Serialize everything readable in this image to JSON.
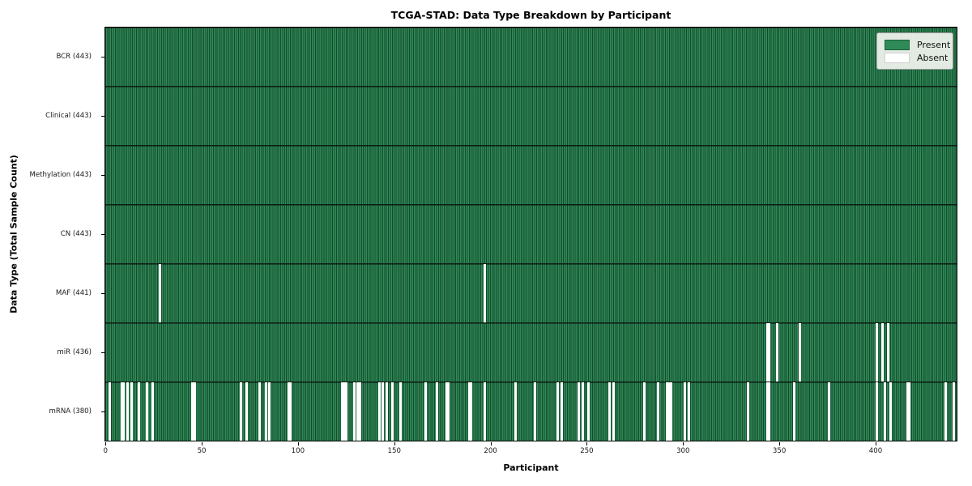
{
  "chart_data": {
    "type": "heatmap",
    "title": "TCGA-STAD: Data Type Breakdown by Participant",
    "xlabel": "Participant",
    "ylabel": "Data Type (Total Sample Count)",
    "n_participants": 443,
    "x_ticks": [
      0,
      50,
      100,
      150,
      200,
      250,
      300,
      350,
      400
    ],
    "legend_position": "upper right",
    "grid": false,
    "colors": {
      "present": "#2e8b57",
      "present_edge": "#17492e",
      "absent": "#ffffff",
      "axes_border": "#000000",
      "legend_background": "#edf1ea"
    },
    "legend": [
      {
        "label": "Present",
        "color": "#2e8b57"
      },
      {
        "label": "Absent",
        "color": "#ffffff"
      }
    ],
    "rows": [
      {
        "name": "BCR",
        "label": "BCR (443)",
        "count": 443,
        "absent": []
      },
      {
        "name": "Clinical",
        "label": "Clinical (443)",
        "count": 443,
        "absent": []
      },
      {
        "name": "Methylation",
        "label": "Methylation (443)",
        "count": 443,
        "absent": []
      },
      {
        "name": "CN",
        "label": "CN (443)",
        "count": 443,
        "absent": []
      },
      {
        "name": "MAF",
        "label": "MAF (441)",
        "count": 441,
        "absent": [
          28,
          197
        ]
      },
      {
        "name": "miR",
        "label": "miR (436)",
        "count": 436,
        "absent": [
          344,
          345,
          349,
          361,
          401,
          404,
          407
        ]
      },
      {
        "name": "mRNA",
        "label": "mRNA (380)",
        "count": 380,
        "absent": [
          2,
          8,
          9,
          11,
          13,
          17,
          21,
          24,
          45,
          46,
          70,
          73,
          80,
          83,
          85,
          95,
          96,
          123,
          124,
          125,
          129,
          131,
          132,
          142,
          144,
          146,
          149,
          153,
          166,
          172,
          177,
          178,
          189,
          190,
          197,
          213,
          223,
          235,
          237,
          246,
          248,
          251,
          262,
          264,
          280,
          287,
          292,
          293,
          294,
          301,
          303,
          334,
          344,
          345,
          358,
          376,
          401,
          405,
          408,
          417,
          418,
          437,
          441
        ]
      }
    ]
  }
}
